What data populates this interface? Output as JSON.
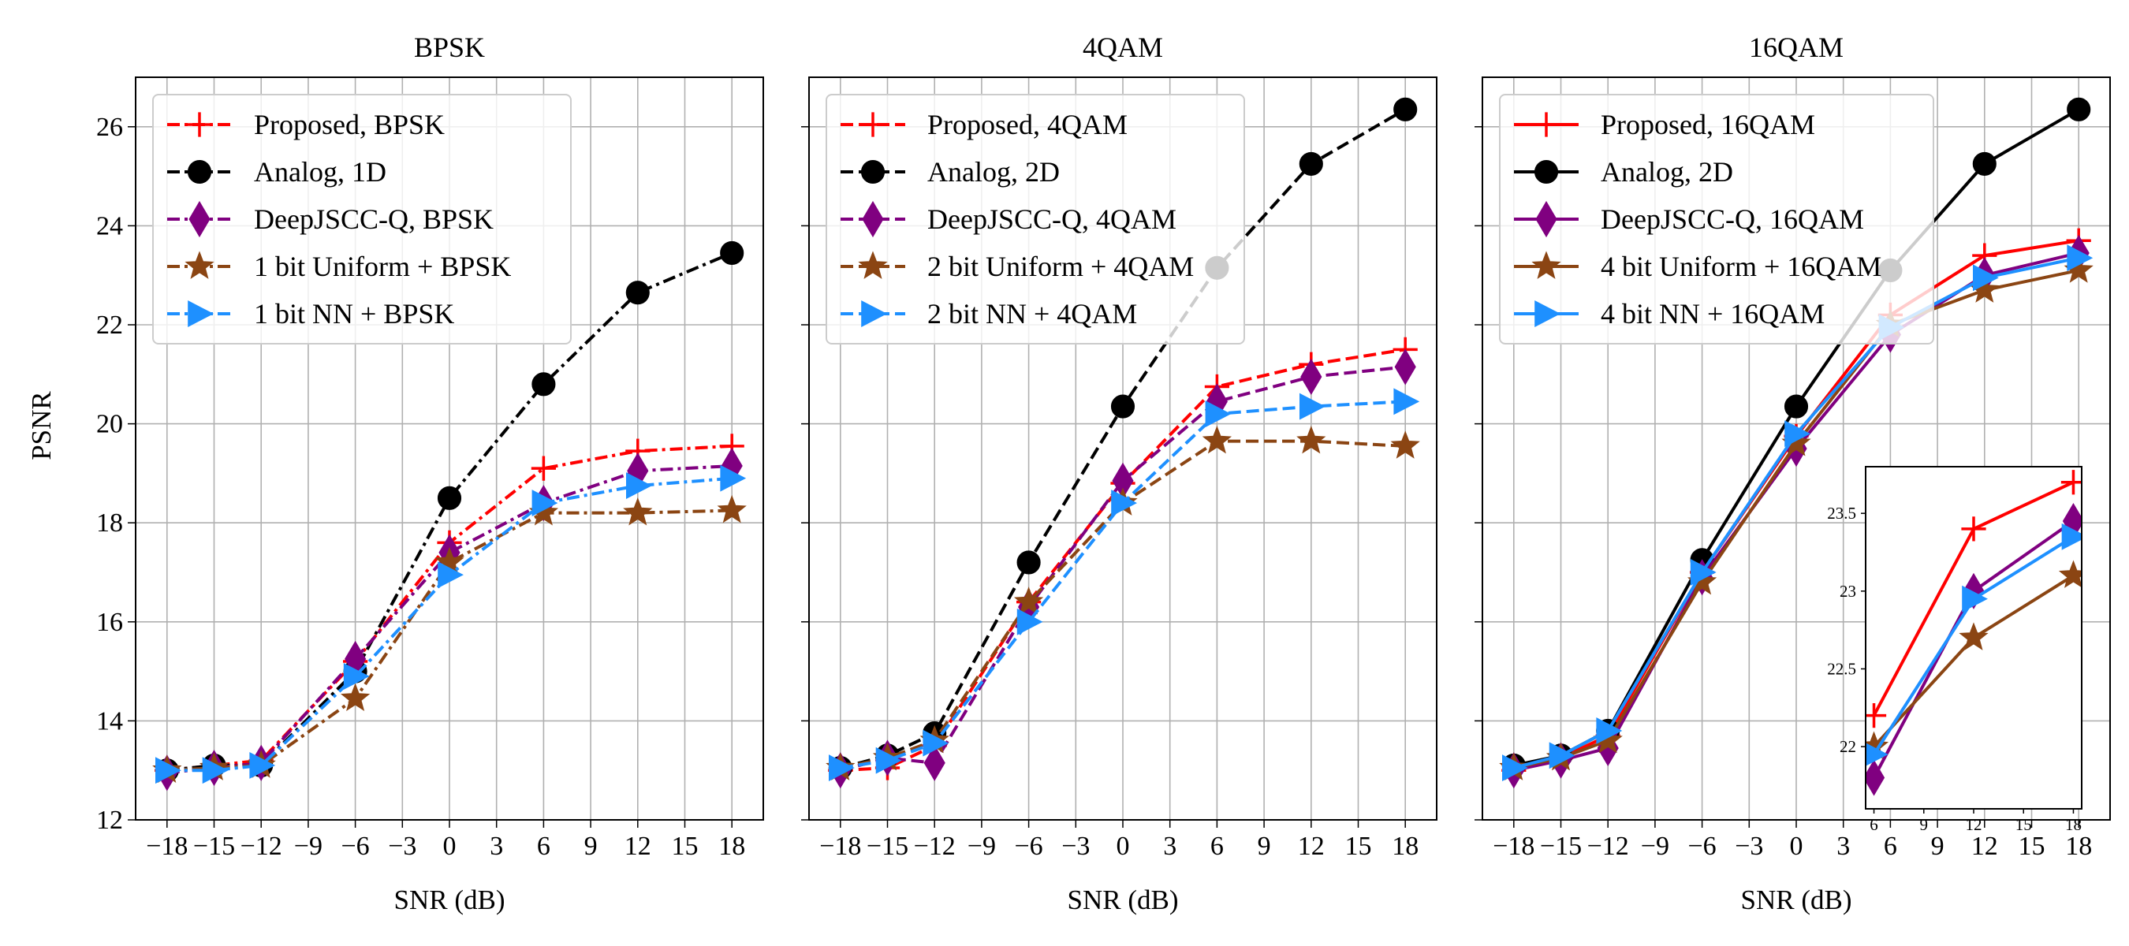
{
  "figure": {
    "ylabel": "PSNR",
    "xlabel": "SNR (dB)"
  },
  "chart_data": [
    {
      "type": "line",
      "title": "BPSK",
      "xlabel": "SNR (dB)",
      "ylabel": "PSNR",
      "xlim": [
        -20,
        20
      ],
      "ylim": [
        12,
        27
      ],
      "xticks": [
        -18,
        -15,
        -12,
        -9,
        -6,
        -3,
        0,
        3,
        6,
        9,
        12,
        15,
        18
      ],
      "yticks": [
        12,
        14,
        16,
        18,
        20,
        22,
        24,
        26
      ],
      "grid": true,
      "legend_position": "top-left",
      "series": [
        {
          "name": "Proposed, BPSK",
          "color": "#ff0000",
          "dash": "dashdot",
          "marker": "plus",
          "x": [
            -18,
            -15,
            -12,
            -6,
            0,
            6,
            12,
            18
          ],
          "y": [
            13.0,
            13.1,
            13.2,
            15.2,
            17.6,
            19.1,
            19.45,
            19.55
          ]
        },
        {
          "name": "Analog, 1D",
          "color": "#000000",
          "dash": "dashdot",
          "marker": "circle",
          "x": [
            -18,
            -15,
            -12,
            -6,
            0,
            6,
            12,
            18
          ],
          "y": [
            13.0,
            13.1,
            13.1,
            15.0,
            18.5,
            20.8,
            22.65,
            23.45
          ]
        },
        {
          "name": "DeepJSCC-Q, BPSK",
          "color": "#800080",
          "dash": "dashdot",
          "marker": "diamond",
          "x": [
            -18,
            -15,
            -12,
            -6,
            0,
            6,
            12,
            18
          ],
          "y": [
            12.95,
            13.05,
            13.15,
            15.25,
            17.4,
            18.4,
            19.05,
            19.15
          ]
        },
        {
          "name": "1 bit Uniform + BPSK",
          "color": "#8b4513",
          "dash": "dashdot",
          "marker": "star",
          "x": [
            -18,
            -15,
            -12,
            -6,
            0,
            6,
            12,
            18
          ],
          "y": [
            13.0,
            13.05,
            13.1,
            14.45,
            17.2,
            18.2,
            18.2,
            18.25
          ]
        },
        {
          "name": "1 bit NN + BPSK",
          "color": "#1e90ff",
          "dash": "dashdot",
          "marker": "triangle-right",
          "x": [
            -18,
            -15,
            -12,
            -6,
            0,
            6,
            12,
            18
          ],
          "y": [
            13.0,
            13.0,
            13.1,
            14.9,
            16.95,
            18.4,
            18.75,
            18.9
          ]
        }
      ]
    },
    {
      "type": "line",
      "title": "4QAM",
      "xlabel": "SNR (dB)",
      "ylabel": "",
      "xlim": [
        -20,
        20
      ],
      "ylim": [
        12,
        27
      ],
      "xticks": [
        -18,
        -15,
        -12,
        -9,
        -6,
        -3,
        0,
        3,
        6,
        9,
        12,
        15,
        18
      ],
      "yticks": [
        12,
        14,
        16,
        18,
        20,
        22,
        24,
        26
      ],
      "grid": true,
      "legend_position": "top-left",
      "series": [
        {
          "name": "Proposed, 4QAM",
          "color": "#ff0000",
          "dash": "dashed",
          "marker": "plus",
          "x": [
            -18,
            -15,
            -12,
            -6,
            0,
            6,
            12,
            18
          ],
          "y": [
            13.0,
            13.05,
            13.5,
            16.4,
            18.8,
            20.75,
            21.2,
            21.5
          ]
        },
        {
          "name": "Analog, 2D",
          "color": "#000000",
          "dash": "dashed",
          "marker": "circle",
          "x": [
            -18,
            -15,
            -12,
            -6,
            0,
            6,
            12,
            18
          ],
          "y": [
            13.05,
            13.3,
            13.75,
            17.2,
            20.35,
            23.15,
            25.25,
            26.35
          ]
        },
        {
          "name": "DeepJSCC-Q, 4QAM",
          "color": "#800080",
          "dash": "dashed",
          "marker": "diamond",
          "x": [
            -18,
            -15,
            -12,
            -6,
            0,
            6,
            12,
            18
          ],
          "y": [
            13.0,
            13.25,
            13.15,
            16.3,
            18.85,
            20.45,
            20.95,
            21.15
          ]
        },
        {
          "name": "2 bit Uniform + 4QAM",
          "color": "#8b4513",
          "dash": "dashed",
          "marker": "star",
          "x": [
            -18,
            -15,
            -12,
            -6,
            0,
            6,
            12,
            18
          ],
          "y": [
            13.05,
            13.25,
            13.6,
            16.4,
            18.4,
            19.65,
            19.65,
            19.55
          ]
        },
        {
          "name": "2 bit NN + 4QAM",
          "color": "#1e90ff",
          "dash": "dashed",
          "marker": "triangle-right",
          "x": [
            -18,
            -15,
            -12,
            -6,
            0,
            6,
            12,
            18
          ],
          "y": [
            13.05,
            13.2,
            13.55,
            16.0,
            18.4,
            20.2,
            20.35,
            20.45
          ]
        }
      ]
    },
    {
      "type": "line",
      "title": "16QAM",
      "xlabel": "SNR (dB)",
      "ylabel": "",
      "xlim": [
        -20,
        20
      ],
      "ylim": [
        12,
        27
      ],
      "xticks": [
        -18,
        -15,
        -12,
        -9,
        -6,
        -3,
        0,
        3,
        6,
        9,
        12,
        15,
        18
      ],
      "yticks": [
        12,
        14,
        16,
        18,
        20,
        22,
        24,
        26
      ],
      "grid": true,
      "legend_position": "top-left",
      "series": [
        {
          "name": "Proposed, 16QAM",
          "color": "#ff0000",
          "dash": "solid",
          "marker": "plus",
          "x": [
            -18,
            -15,
            -12,
            -6,
            0,
            6,
            12,
            18
          ],
          "y": [
            13.0,
            13.25,
            13.7,
            17.0,
            19.75,
            22.2,
            23.4,
            23.7
          ]
        },
        {
          "name": "Analog, 2D",
          "color": "#000000",
          "dash": "solid",
          "marker": "circle",
          "x": [
            -18,
            -15,
            -12,
            -6,
            0,
            6,
            12,
            18
          ],
          "y": [
            13.1,
            13.3,
            13.8,
            17.25,
            20.35,
            23.1,
            25.25,
            26.35
          ]
        },
        {
          "name": "DeepJSCC-Q, 16QAM",
          "color": "#800080",
          "dash": "solid",
          "marker": "diamond",
          "x": [
            -18,
            -15,
            -12,
            -6,
            0,
            6,
            12,
            18
          ],
          "y": [
            13.0,
            13.2,
            13.45,
            16.9,
            19.5,
            21.8,
            23.0,
            23.45
          ]
        },
        {
          "name": "4 bit Uniform + 16QAM",
          "color": "#8b4513",
          "dash": "solid",
          "marker": "star",
          "x": [
            -18,
            -15,
            -12,
            -6,
            0,
            6,
            12,
            18
          ],
          "y": [
            13.05,
            13.25,
            13.6,
            16.8,
            19.6,
            22.0,
            22.7,
            23.1
          ]
        },
        {
          "name": "4 bit NN + 16QAM",
          "color": "#1e90ff",
          "dash": "solid",
          "marker": "triangle-right",
          "x": [
            -18,
            -15,
            -12,
            -6,
            0,
            6,
            12,
            18
          ],
          "y": [
            13.05,
            13.3,
            13.8,
            17.0,
            19.8,
            21.95,
            22.95,
            23.35
          ]
        }
      ],
      "inset": {
        "xlim": [
          5.5,
          18.5
        ],
        "ylim": [
          21.6,
          23.8
        ],
        "xticks": [
          6,
          9,
          12,
          15,
          18
        ],
        "yticks": [
          22,
          22.5,
          23,
          23.5
        ],
        "ytick_labels": [
          "22",
          "22.5",
          "23",
          "23.5"
        ],
        "xtick_labels": [
          "6",
          "9",
          "12",
          "15",
          "18"
        ]
      }
    }
  ]
}
